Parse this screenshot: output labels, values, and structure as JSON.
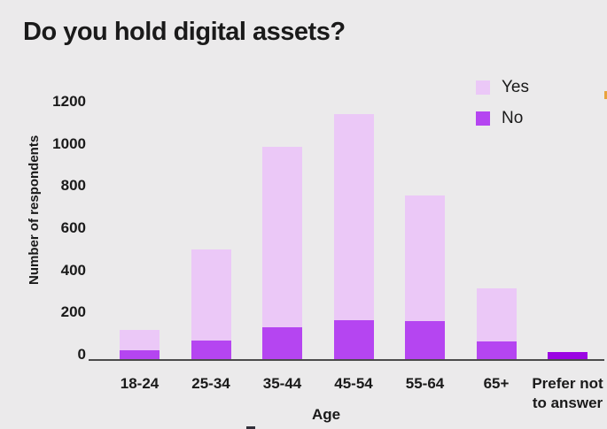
{
  "page": {
    "background_color": "#ebeaeb",
    "text_color": "#1a1a1a"
  },
  "header": {
    "title": "Do you hold digital assets?"
  },
  "legend": {
    "items": [
      {
        "label": "Yes",
        "color": "#ebc8f7"
      },
      {
        "label": "No",
        "color": "#b545f1"
      }
    ]
  },
  "chart_data": {
    "type": "bar",
    "stacked": true,
    "title": "Do you hold digital assets?",
    "xlabel": "Age",
    "ylabel": "Number of respondents",
    "ylim": [
      0,
      1200
    ],
    "yticks": [
      0,
      200,
      400,
      600,
      800,
      1000,
      1200
    ],
    "grid": false,
    "legend_position": "top-right",
    "categories": [
      "18-24",
      "25-34",
      "35-44",
      "45-54",
      "55-64",
      "65+",
      "Prefer not\nto answer"
    ],
    "series": [
      {
        "name": "Yes",
        "color": "#ebc8f7",
        "values": [
          100,
          430,
          855,
          975,
          595,
          250,
          0
        ]
      },
      {
        "name": "No",
        "color": "#b545f1",
        "values": [
          40,
          90,
          150,
          185,
          180,
          85,
          35
        ]
      }
    ],
    "totals": [
      140,
      520,
      1005,
      1160,
      775,
      335,
      35
    ],
    "prefer_not_bar_color": "#9b05e3",
    "axis_line_color": "#4b4b4b"
  }
}
